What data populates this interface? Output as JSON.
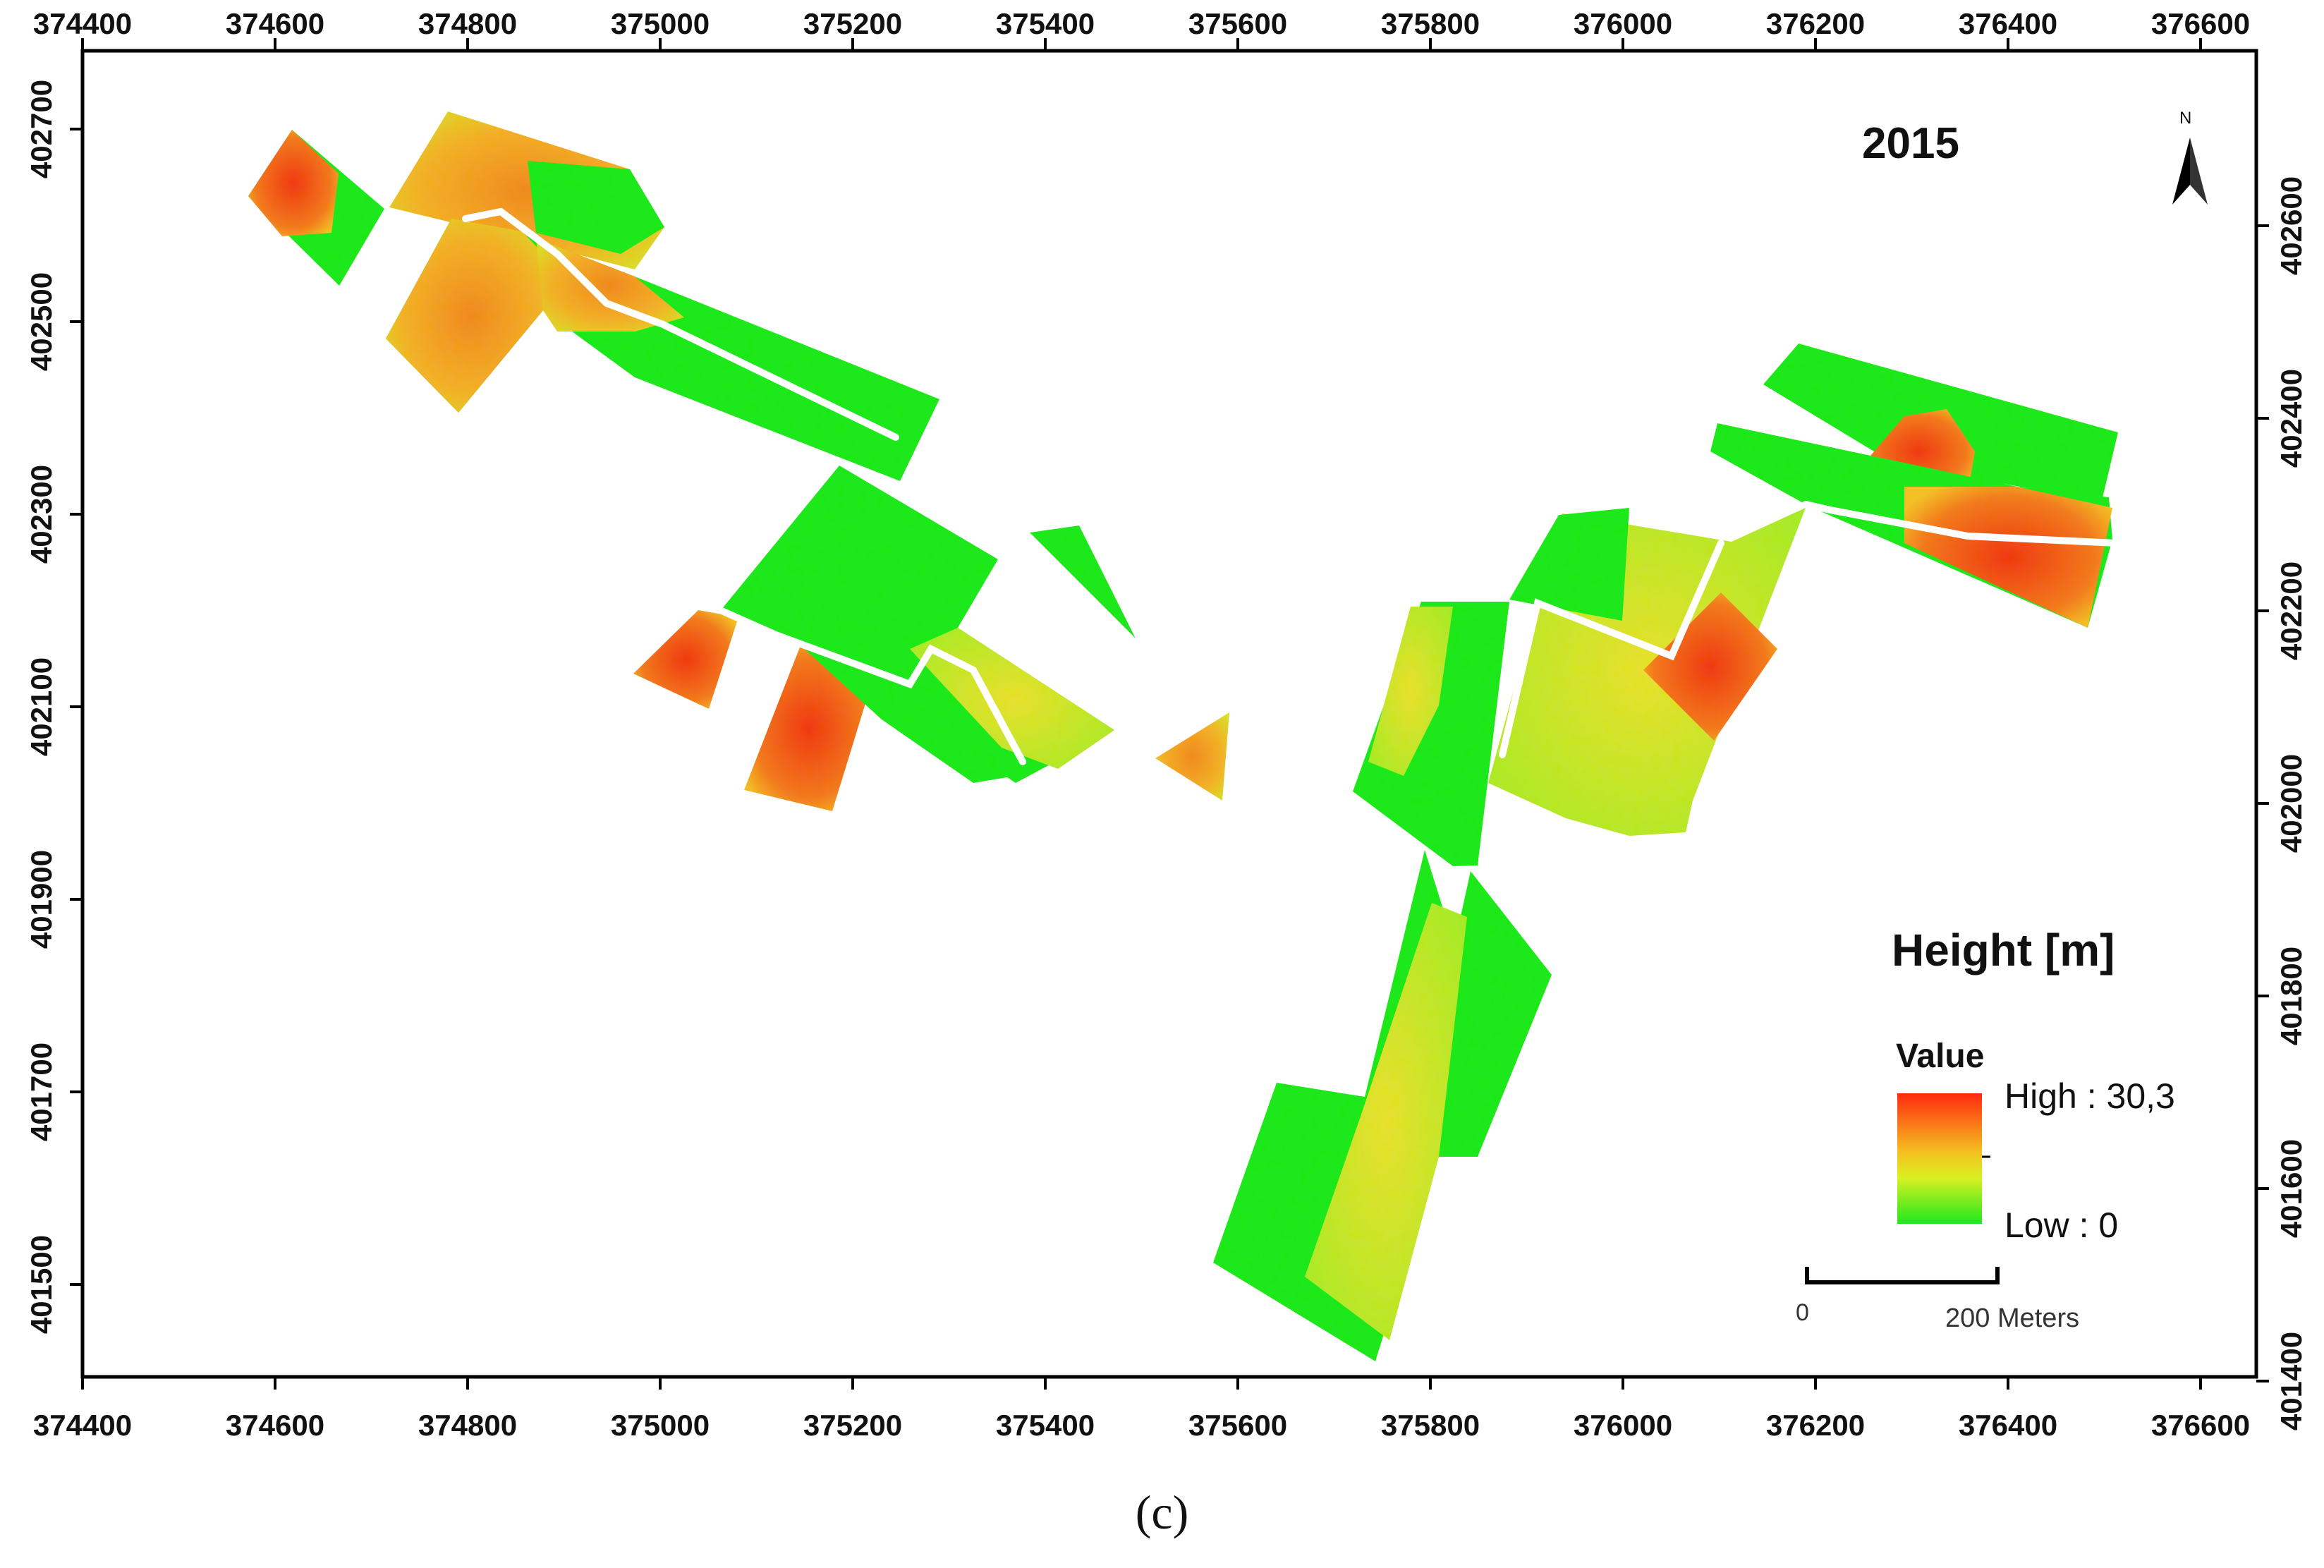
{
  "map": {
    "year_label": "2015",
    "north_arrow": {
      "letter": "N",
      "icon": "north-arrow-icon"
    },
    "panel_caption": "(c)",
    "x_ticks": [
      "374400",
      "374600",
      "374800",
      "375000",
      "375200",
      "375400",
      "375600",
      "375800",
      "376000",
      "376200",
      "376400",
      "376600"
    ],
    "y_ticks_left": [
      "402700",
      "402500",
      "402300",
      "402100",
      "401900",
      "401700",
      "401500"
    ],
    "y_ticks_right": [
      "402600",
      "402400",
      "402200",
      "402000",
      "401800",
      "401600",
      "401400"
    ],
    "legend": {
      "title": "Height [m]",
      "value_label": "Value",
      "high_label": "High : 30,3",
      "low_label": "Low : 0",
      "high_value": 30.3,
      "low_value": 0,
      "colors": {
        "high": "#ff2a0f",
        "mid": "#f5d020",
        "low": "#1ee81e"
      }
    },
    "scale_bar": {
      "zero_label": "0",
      "end_label": "200 Meters",
      "length_m": 200
    },
    "colors": {
      "low": "#1ee81e",
      "yellow": "#e8e82a",
      "orange": "#f2a22a",
      "red": "#f0461a"
    }
  }
}
